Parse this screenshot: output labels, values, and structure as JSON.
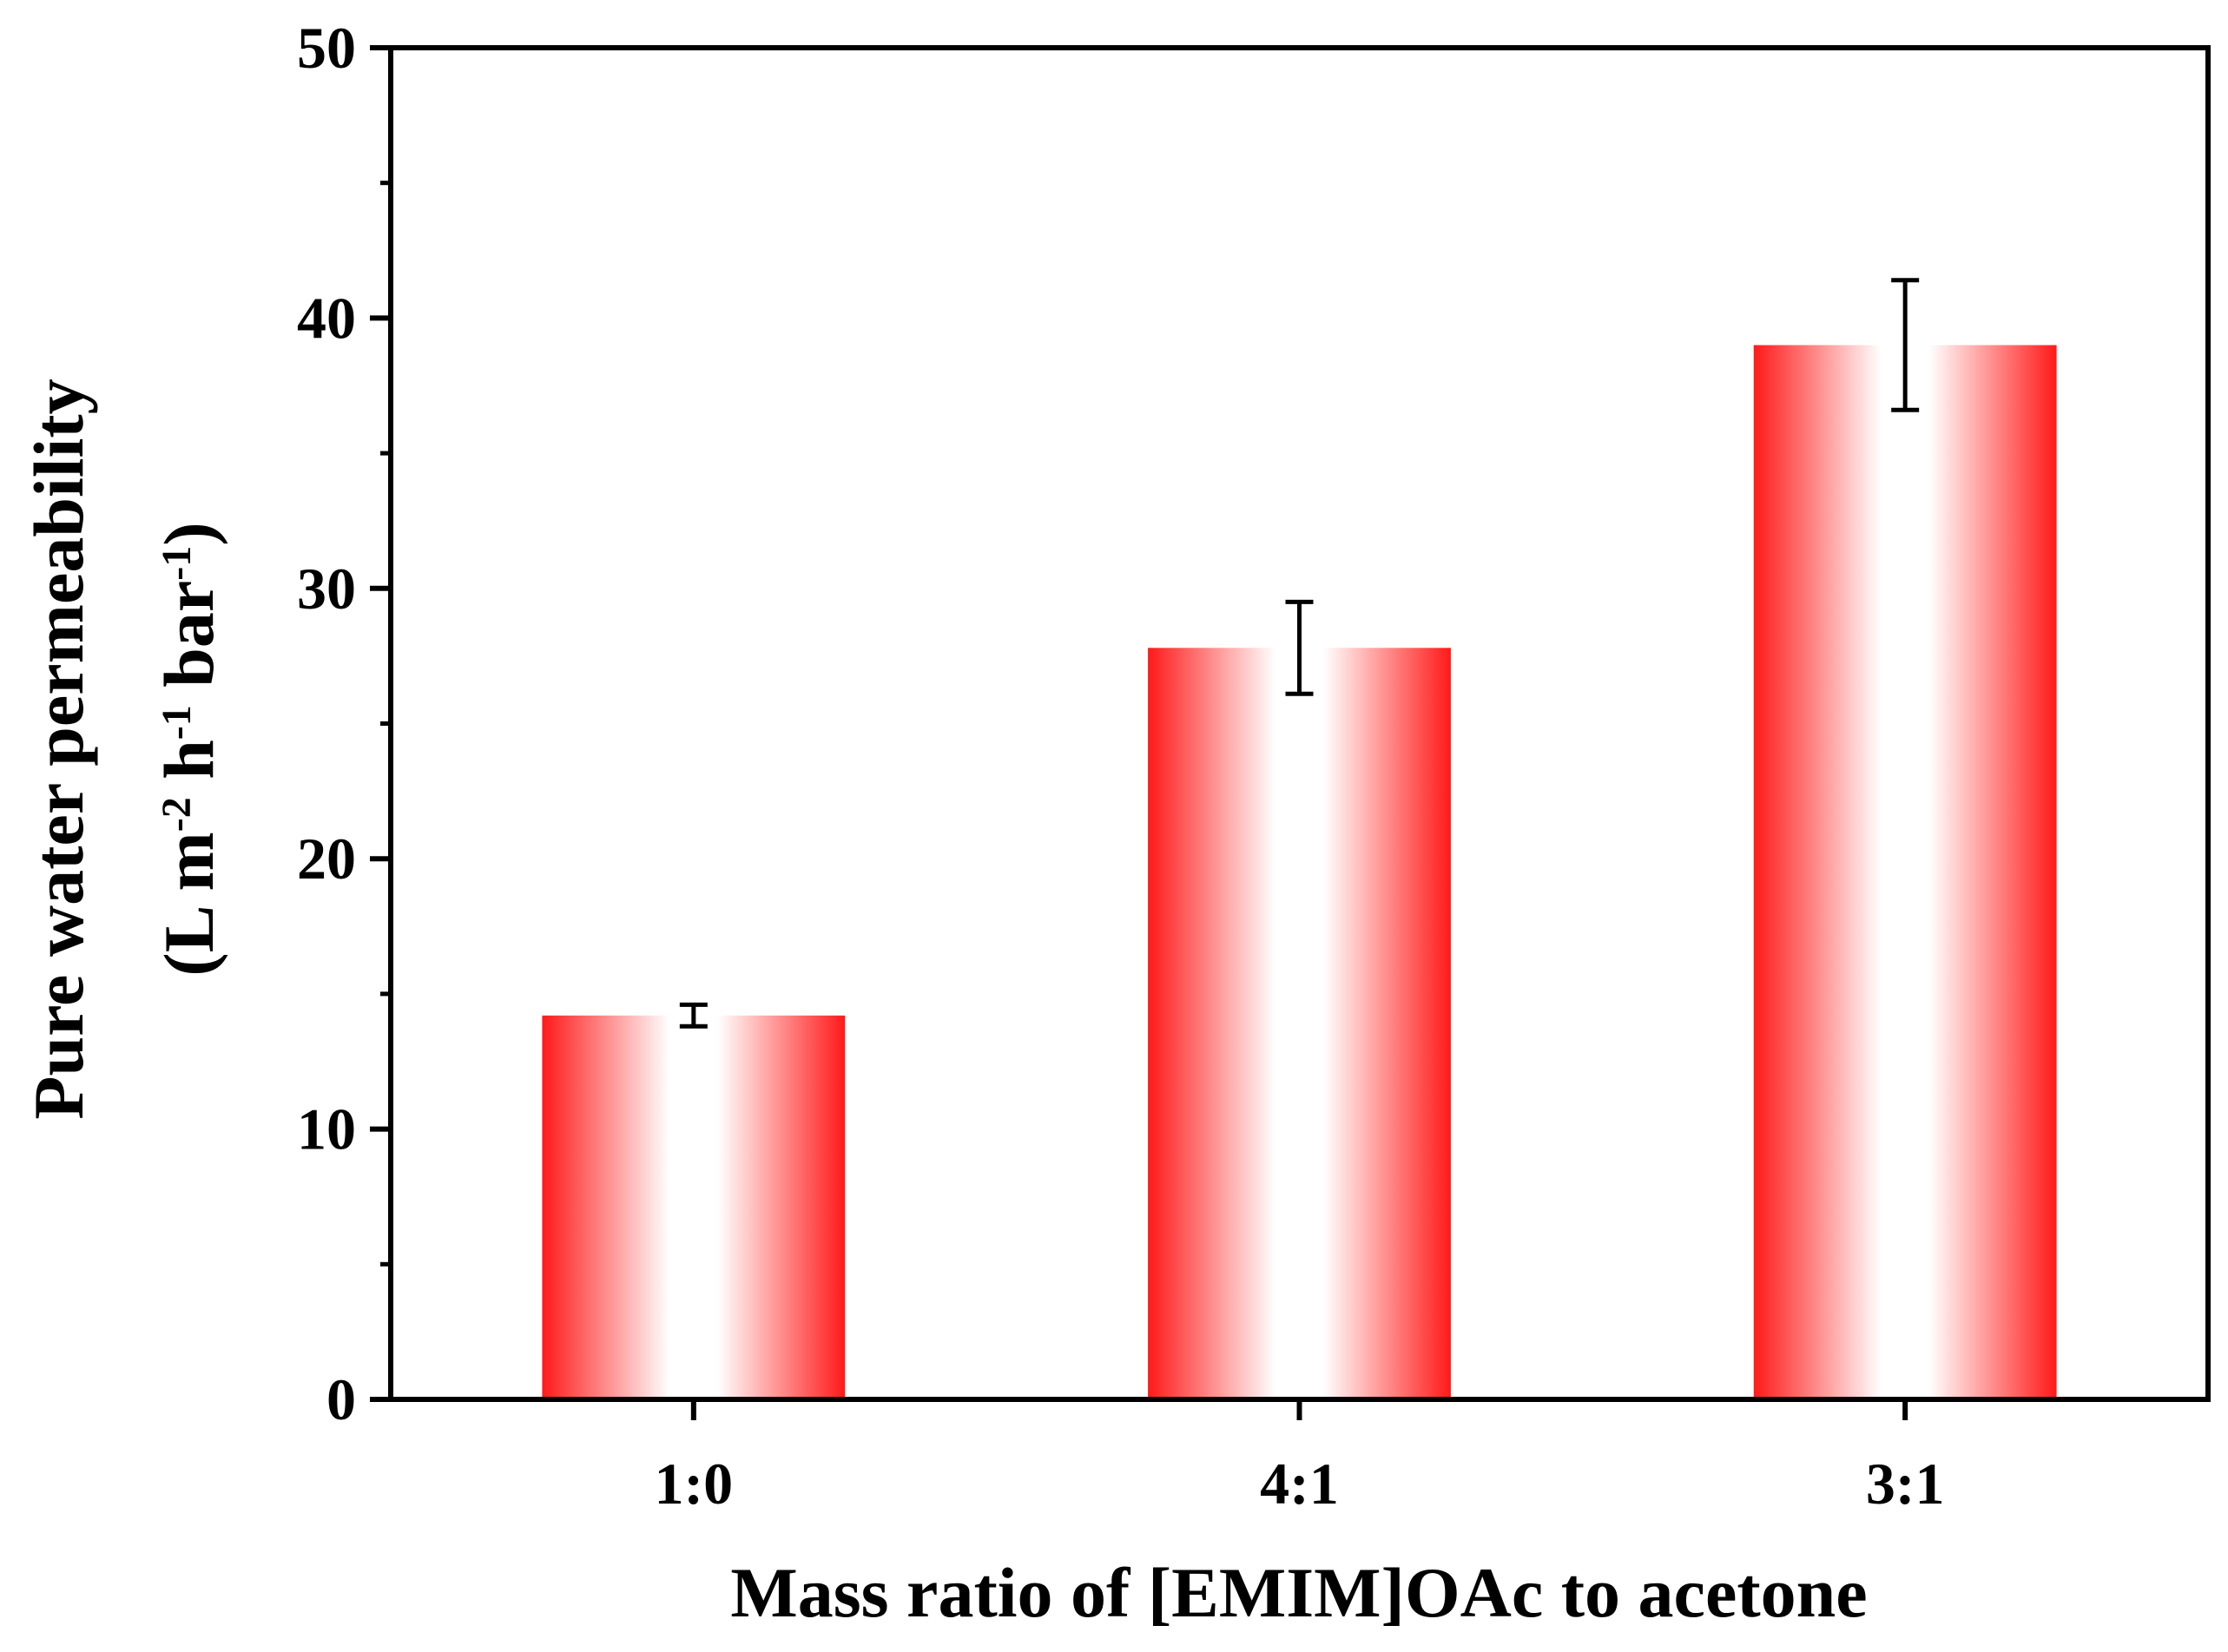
{
  "chart_data": {
    "type": "bar",
    "categories": [
      "1:0",
      "4:1",
      "3:1"
    ],
    "values": [
      14.2,
      27.8,
      39.0
    ],
    "errors": [
      0.4,
      1.7,
      2.4
    ],
    "title": "",
    "xlabel": "Mass ratio of [EMIM]OAc to acetone",
    "ylabel_line1": "Pure water permeability",
    "ylabel_line2_parts": [
      "(L m",
      "-2",
      " h",
      "-1",
      " bar",
      "-1",
      ")"
    ],
    "ylim": [
      0,
      50
    ],
    "yticks": [
      "0",
      "10",
      "20",
      "30",
      "40",
      "50"
    ],
    "bar_color": "#ff1a1a",
    "grid": false
  }
}
